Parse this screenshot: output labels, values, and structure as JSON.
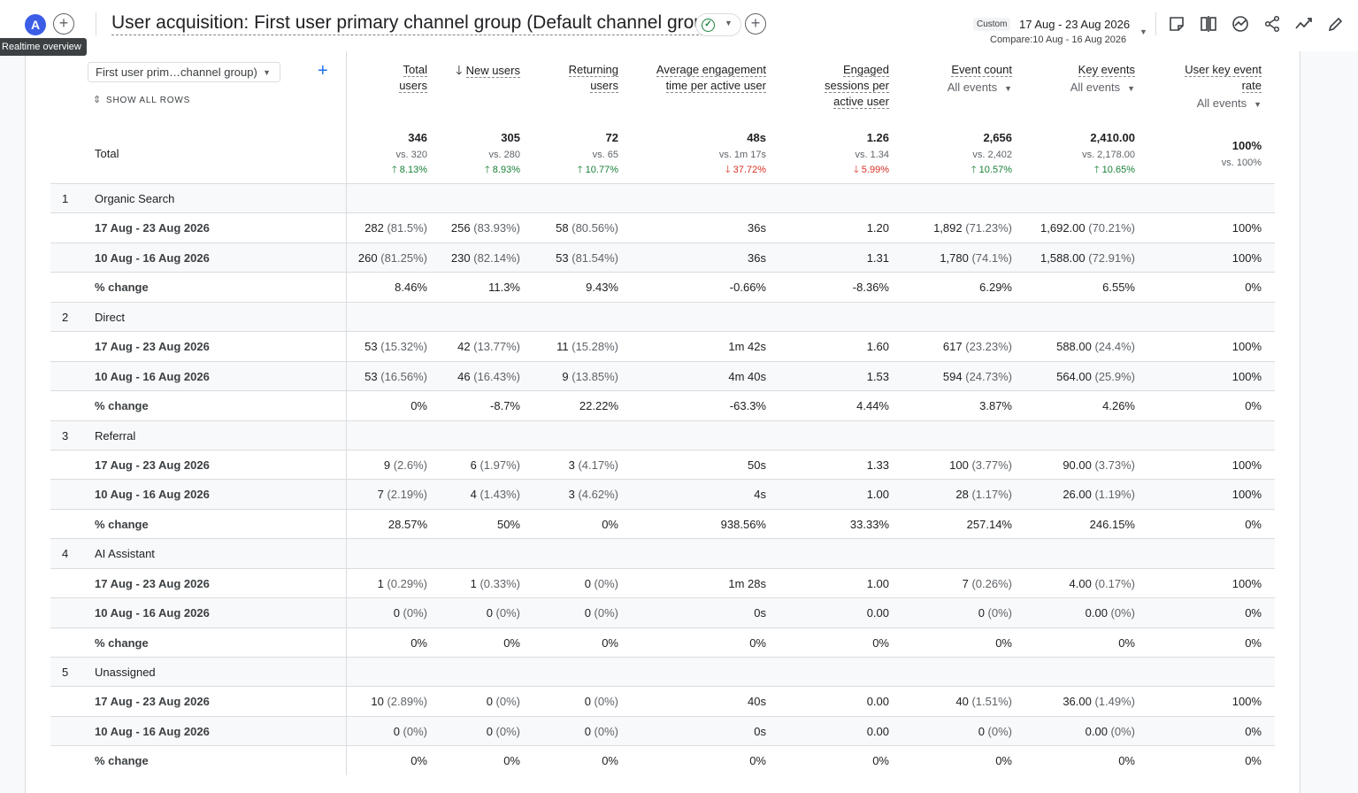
{
  "header": {
    "avatar_letter": "A",
    "tooltip": "Realtime overview",
    "title": "User acquisition: First user primary channel group (Default channel group)",
    "custom_chip": "Custom",
    "date_range": "17 Aug - 23 Aug 2026",
    "compare": "Compare:10 Aug - 16 Aug 2026"
  },
  "toolbar_icons": [
    "note-icon",
    "compare-icon",
    "insights-icon",
    "share-icon",
    "trend-icon",
    "edit-icon"
  ],
  "table": {
    "dimension_select": "First user prim…channel group)",
    "show_all_rows": "SHOW ALL ROWS",
    "total_label": "Total",
    "columns": [
      {
        "label": "Total users",
        "lines": [
          "Total",
          "users"
        ]
      },
      {
        "label": "New users",
        "lines": [
          "New users"
        ],
        "sorted": true
      },
      {
        "label": "Returning users",
        "lines": [
          "Returning",
          "users"
        ]
      },
      {
        "label": "Average engagement time per active user",
        "lines": [
          "Average engagement",
          "time per active user"
        ]
      },
      {
        "label": "Engaged sessions per active user",
        "lines": [
          "Engaged",
          "sessions per",
          "active user"
        ]
      },
      {
        "label": "Event count",
        "lines": [
          "Event count"
        ],
        "select": "All events"
      },
      {
        "label": "Key events",
        "lines": [
          "Key events"
        ],
        "select": "All events"
      },
      {
        "label": "User key event rate",
        "lines": [
          "User key event",
          "rate"
        ],
        "select": "All events"
      }
    ],
    "totals": [
      {
        "value": "346",
        "vs": "vs. 320",
        "change": "8.13%",
        "dir": "up"
      },
      {
        "value": "305",
        "vs": "vs. 280",
        "change": "8.93%",
        "dir": "up"
      },
      {
        "value": "72",
        "vs": "vs. 65",
        "change": "10.77%",
        "dir": "up"
      },
      {
        "value": "48s",
        "vs": "vs. 1m 17s",
        "change": "37.72%",
        "dir": "down"
      },
      {
        "value": "1.26",
        "vs": "vs. 1.34",
        "change": "5.99%",
        "dir": "down"
      },
      {
        "value": "2,656",
        "vs": "vs. 2,402",
        "change": "10.57%",
        "dir": "up"
      },
      {
        "value": "2,410.00",
        "vs": "vs. 2,178.00",
        "change": "10.65%",
        "dir": "up"
      },
      {
        "value": "100%",
        "vs": "vs. 100%",
        "change": "",
        "dir": ""
      }
    ],
    "groups": [
      {
        "index": "1",
        "name": "Organic Search",
        "rows": [
          {
            "label": "17 Aug - 23 Aug 2026",
            "cells": [
              [
                "282",
                "(81.5%)"
              ],
              [
                "256",
                "(83.93%)"
              ],
              [
                "58",
                "(80.56%)"
              ],
              [
                "36s",
                ""
              ],
              [
                "1.20",
                ""
              ],
              [
                "1,892",
                "(71.23%)"
              ],
              [
                "1,692.00",
                "(70.21%)"
              ],
              [
                "100%",
                ""
              ]
            ]
          },
          {
            "label": "10 Aug - 16 Aug 2026",
            "cells": [
              [
                "260",
                "(81.25%)"
              ],
              [
                "230",
                "(82.14%)"
              ],
              [
                "53",
                "(81.54%)"
              ],
              [
                "36s",
                ""
              ],
              [
                "1.31",
                ""
              ],
              [
                "1,780",
                "(74.1%)"
              ],
              [
                "1,588.00",
                "(72.91%)"
              ],
              [
                "100%",
                ""
              ]
            ]
          },
          {
            "label": "% change",
            "cells": [
              [
                "8.46%",
                ""
              ],
              [
                "11.3%",
                ""
              ],
              [
                "9.43%",
                ""
              ],
              [
                "-0.66%",
                ""
              ],
              [
                "-8.36%",
                ""
              ],
              [
                "6.29%",
                ""
              ],
              [
                "6.55%",
                ""
              ],
              [
                "0%",
                ""
              ]
            ]
          }
        ]
      },
      {
        "index": "2",
        "name": "Direct",
        "rows": [
          {
            "label": "17 Aug - 23 Aug 2026",
            "cells": [
              [
                "53",
                "(15.32%)"
              ],
              [
                "42",
                "(13.77%)"
              ],
              [
                "11",
                "(15.28%)"
              ],
              [
                "1m 42s",
                ""
              ],
              [
                "1.60",
                ""
              ],
              [
                "617",
                "(23.23%)"
              ],
              [
                "588.00",
                "(24.4%)"
              ],
              [
                "100%",
                ""
              ]
            ]
          },
          {
            "label": "10 Aug - 16 Aug 2026",
            "cells": [
              [
                "53",
                "(16.56%)"
              ],
              [
                "46",
                "(16.43%)"
              ],
              [
                "9",
                "(13.85%)"
              ],
              [
                "4m 40s",
                ""
              ],
              [
                "1.53",
                ""
              ],
              [
                "594",
                "(24.73%)"
              ],
              [
                "564.00",
                "(25.9%)"
              ],
              [
                "100%",
                ""
              ]
            ]
          },
          {
            "label": "% change",
            "cells": [
              [
                "0%",
                ""
              ],
              [
                "-8.7%",
                ""
              ],
              [
                "22.22%",
                ""
              ],
              [
                "-63.3%",
                ""
              ],
              [
                "4.44%",
                ""
              ],
              [
                "3.87%",
                ""
              ],
              [
                "4.26%",
                ""
              ],
              [
                "0%",
                ""
              ]
            ]
          }
        ]
      },
      {
        "index": "3",
        "name": "Referral",
        "rows": [
          {
            "label": "17 Aug - 23 Aug 2026",
            "cells": [
              [
                "9",
                "(2.6%)"
              ],
              [
                "6",
                "(1.97%)"
              ],
              [
                "3",
                "(4.17%)"
              ],
              [
                "50s",
                ""
              ],
              [
                "1.33",
                ""
              ],
              [
                "100",
                "(3.77%)"
              ],
              [
                "90.00",
                "(3.73%)"
              ],
              [
                "100%",
                ""
              ]
            ]
          },
          {
            "label": "10 Aug - 16 Aug 2026",
            "cells": [
              [
                "7",
                "(2.19%)"
              ],
              [
                "4",
                "(1.43%)"
              ],
              [
                "3",
                "(4.62%)"
              ],
              [
                "4s",
                ""
              ],
              [
                "1.00",
                ""
              ],
              [
                "28",
                "(1.17%)"
              ],
              [
                "26.00",
                "(1.19%)"
              ],
              [
                "100%",
                ""
              ]
            ]
          },
          {
            "label": "% change",
            "cells": [
              [
                "28.57%",
                ""
              ],
              [
                "50%",
                ""
              ],
              [
                "0%",
                ""
              ],
              [
                "938.56%",
                ""
              ],
              [
                "33.33%",
                ""
              ],
              [
                "257.14%",
                ""
              ],
              [
                "246.15%",
                ""
              ],
              [
                "0%",
                ""
              ]
            ]
          }
        ]
      },
      {
        "index": "4",
        "name": "AI Assistant",
        "rows": [
          {
            "label": "17 Aug - 23 Aug 2026",
            "cells": [
              [
                "1",
                "(0.29%)"
              ],
              [
                "1",
                "(0.33%)"
              ],
              [
                "0",
                "(0%)"
              ],
              [
                "1m 28s",
                ""
              ],
              [
                "1.00",
                ""
              ],
              [
                "7",
                "(0.26%)"
              ],
              [
                "4.00",
                "(0.17%)"
              ],
              [
                "100%",
                ""
              ]
            ]
          },
          {
            "label": "10 Aug - 16 Aug 2026",
            "cells": [
              [
                "0",
                "(0%)"
              ],
              [
                "0",
                "(0%)"
              ],
              [
                "0",
                "(0%)"
              ],
              [
                "0s",
                ""
              ],
              [
                "0.00",
                ""
              ],
              [
                "0",
                "(0%)"
              ],
              [
                "0.00",
                "(0%)"
              ],
              [
                "0%",
                ""
              ]
            ]
          },
          {
            "label": "% change",
            "cells": [
              [
                "0%",
                ""
              ],
              [
                "0%",
                ""
              ],
              [
                "0%",
                ""
              ],
              [
                "0%",
                ""
              ],
              [
                "0%",
                ""
              ],
              [
                "0%",
                ""
              ],
              [
                "0%",
                ""
              ],
              [
                "0%",
                ""
              ]
            ]
          }
        ]
      },
      {
        "index": "5",
        "name": "Unassigned",
        "rows": [
          {
            "label": "17 Aug - 23 Aug 2026",
            "cells": [
              [
                "10",
                "(2.89%)"
              ],
              [
                "0",
                "(0%)"
              ],
              [
                "0",
                "(0%)"
              ],
              [
                "40s",
                ""
              ],
              [
                "0.00",
                ""
              ],
              [
                "40",
                "(1.51%)"
              ],
              [
                "36.00",
                "(1.49%)"
              ],
              [
                "100%",
                ""
              ]
            ]
          },
          {
            "label": "10 Aug - 16 Aug 2026",
            "cells": [
              [
                "0",
                "(0%)"
              ],
              [
                "0",
                "(0%)"
              ],
              [
                "0",
                "(0%)"
              ],
              [
                "0s",
                ""
              ],
              [
                "0.00",
                ""
              ],
              [
                "0",
                "(0%)"
              ],
              [
                "0.00",
                "(0%)"
              ],
              [
                "0%",
                ""
              ]
            ]
          },
          {
            "label": "% change",
            "cells": [
              [
                "0%",
                ""
              ],
              [
                "0%",
                ""
              ],
              [
                "0%",
                ""
              ],
              [
                "0%",
                ""
              ],
              [
                "0%",
                ""
              ],
              [
                "0%",
                ""
              ],
              [
                "0%",
                ""
              ],
              [
                "0%",
                ""
              ]
            ]
          }
        ]
      }
    ]
  }
}
